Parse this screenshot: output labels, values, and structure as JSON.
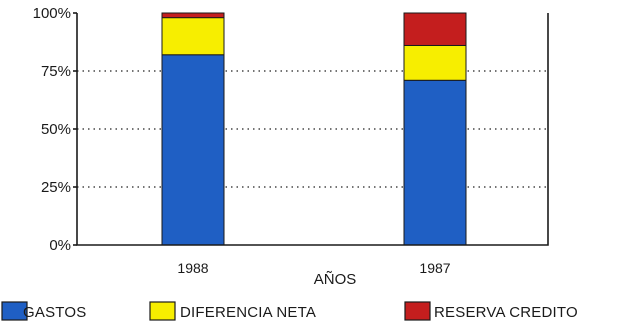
{
  "chart_data": {
    "type": "bar",
    "stacked": true,
    "title": "",
    "xlabel": "AÑOS",
    "ylabel": "",
    "ylim": [
      0,
      100
    ],
    "yticks": [
      0,
      25,
      50,
      75,
      100
    ],
    "ytick_labels": [
      "0%",
      "25%",
      "50%",
      "75%",
      "100%"
    ],
    "categories": [
      "1988",
      "1987"
    ],
    "grid": true,
    "legend_position": "bottom",
    "series": [
      {
        "name": "GASTOS",
        "values": [
          82,
          71
        ],
        "color": "#1f5fc4"
      },
      {
        "name": "DIFERENCIA NETA",
        "values": [
          16,
          15
        ],
        "color": "#f7ee00"
      },
      {
        "name": "RESERVA CREDITO",
        "values": [
          2,
          14
        ],
        "color": "#c41e1e"
      }
    ]
  }
}
